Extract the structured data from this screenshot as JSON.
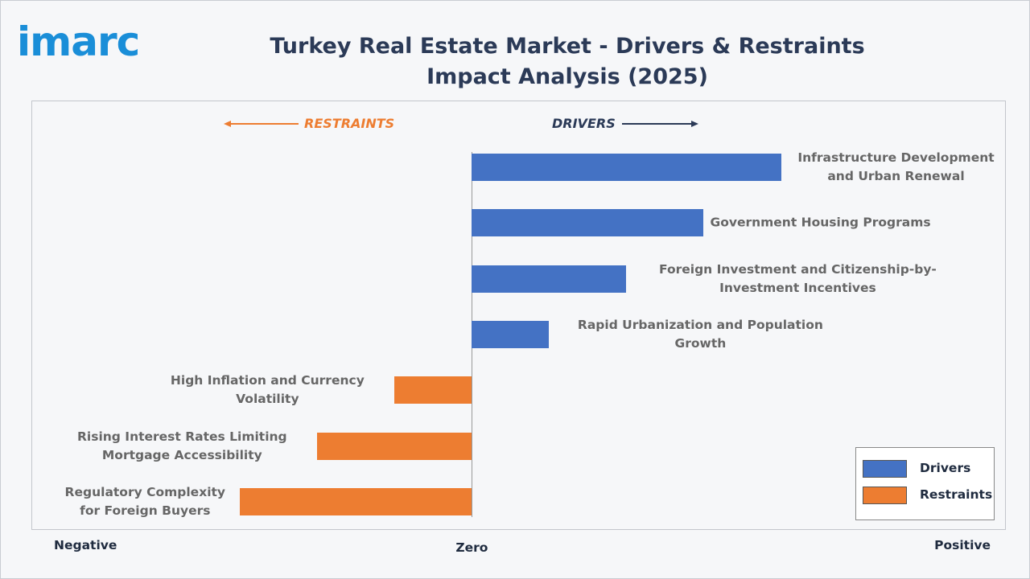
{
  "logo": "imarc",
  "chart_data": {
    "type": "diverging-bar",
    "title": "Turkey Real Estate Market - Drivers & Restraints Impact Analysis (2025)",
    "annotations": [
      "RESTRAINTS",
      "DRIVERS"
    ],
    "categories": [
      "Infrastructure Development and Urban Renewal",
      "Government Housing Programs",
      "Foreign Investment and Citizenship-by-Investment Incentives",
      "Rapid Urbanization and Population Growth",
      "High Inflation and Currency Volatility",
      "Rising Interest Rates Limiting Mortgage Accessibility",
      "Regulatory Complexity for Foreign Buyers"
    ],
    "series": [
      {
        "name": "Drivers",
        "color": "#4472c4",
        "values": [
          4,
          3,
          2,
          1,
          null,
          null,
          null
        ]
      },
      {
        "name": "Restraints",
        "color": "#ed7d31",
        "values": [
          null,
          null,
          null,
          null,
          -1,
          -2,
          -3
        ]
      }
    ],
    "xlim": [
      -5.7,
      6.9
    ],
    "xticks": [
      {
        "value": -5.7,
        "label": "Negative"
      },
      {
        "value": 0,
        "label": "Zero"
      },
      {
        "value": 6.9,
        "label": "Positive"
      }
    ],
    "grid": false,
    "legend": "bottom-right"
  }
}
